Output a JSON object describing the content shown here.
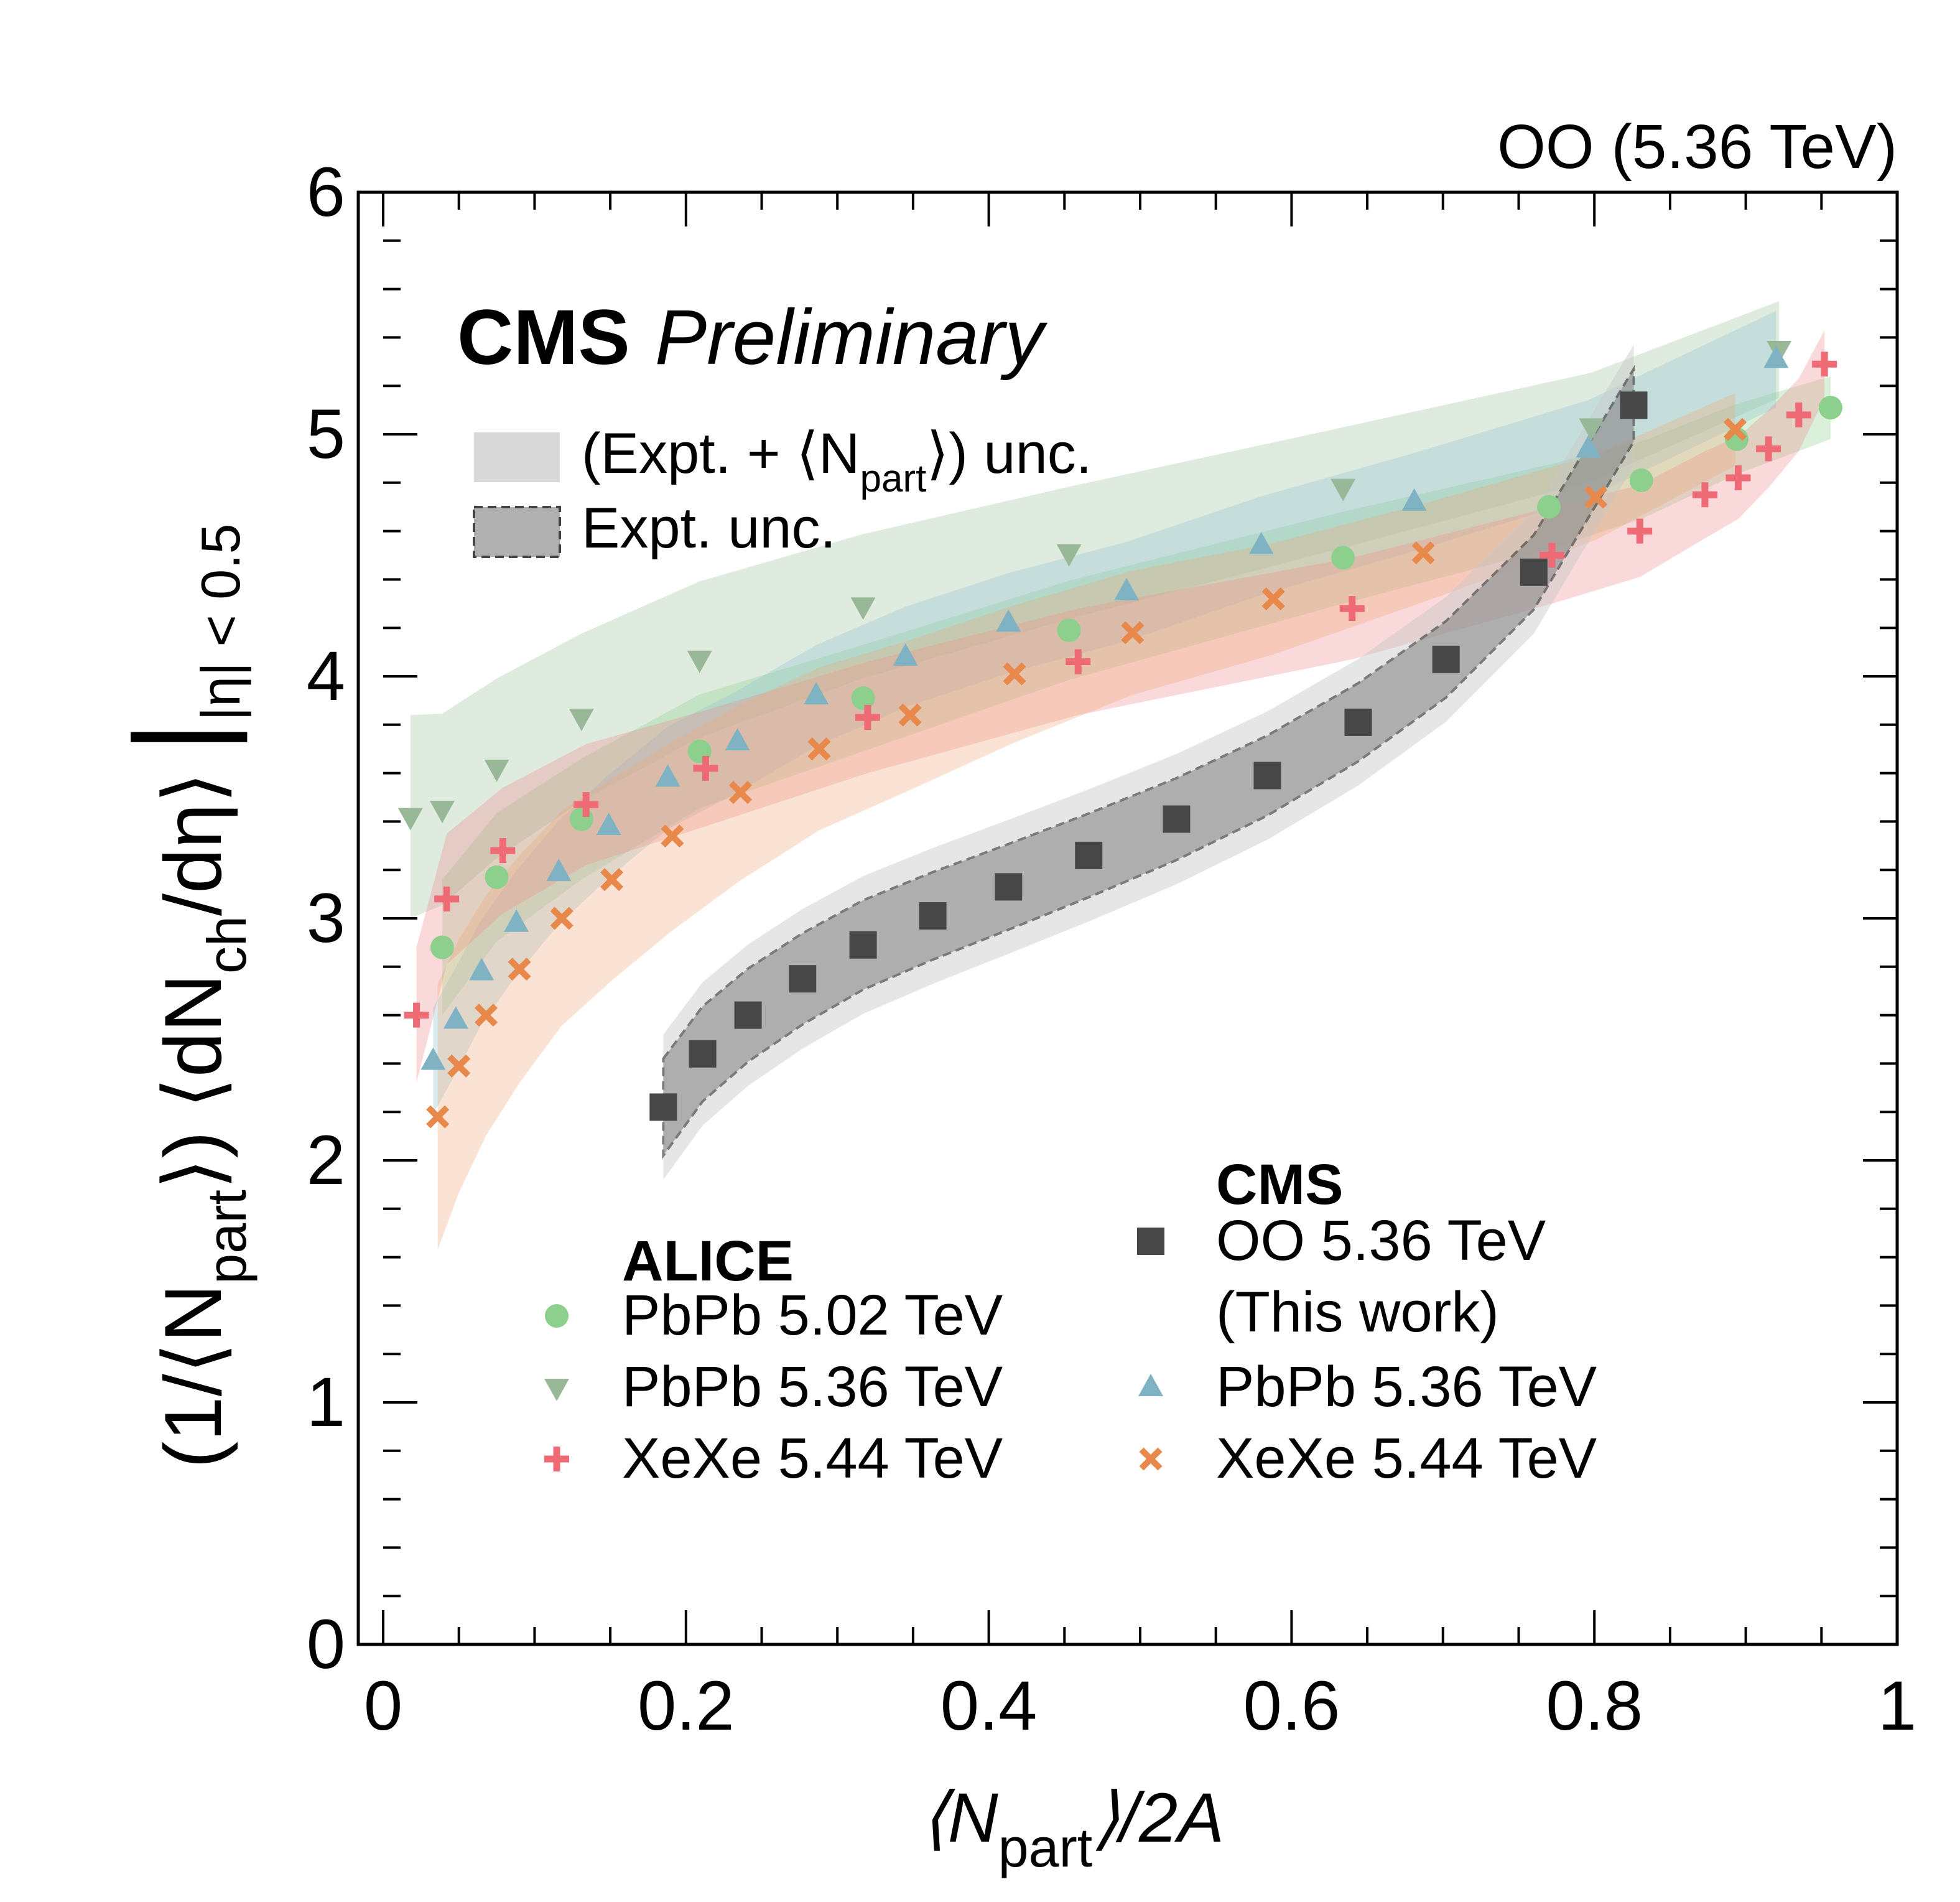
{
  "chart_data": {
    "type": "scatter",
    "title": "OO (5.36 TeV)",
    "experiment": "CMS",
    "status": "Preliminary",
    "xlabel": {
      "main": "⟨N",
      "sub": "part",
      "tail": "⟩/2A"
    },
    "ylabel": {
      "p1": "(1/⟨N",
      "p1sub": "part",
      "p2": "⟩) ⟨dN",
      "p2sub": "ch",
      "p3": "/dη⟩",
      "range": "|η| < 0.5"
    },
    "xlim": [
      0,
      1
    ],
    "ylim": [
      0,
      6
    ],
    "xticks": [
      "0",
      "0.2",
      "0.4",
      "0.6",
      "0.8",
      "1"
    ],
    "yticks": [
      "0",
      "1",
      "2",
      "3",
      "4",
      "5",
      "6"
    ],
    "band_legend": {
      "total": "(Expt. +  ⟨N",
      "total_sub": "part",
      "total_tail": "⟩) unc.",
      "expt": "Expt. unc."
    },
    "legend_groups": {
      "alice": "ALICE",
      "cms": "CMS"
    },
    "series": [
      {
        "name": "OO 5.36 TeV",
        "name2": "(This work)",
        "group": "cms",
        "marker": "square",
        "color": "#474747",
        "band": "#b0b0b0",
        "x": [
          0.185,
          0.211,
          0.241,
          0.277,
          0.317,
          0.363,
          0.413,
          0.466,
          0.524,
          0.584,
          0.644,
          0.702,
          0.76,
          0.826
        ],
        "y": [
          2.22,
          2.44,
          2.6,
          2.75,
          2.89,
          3.01,
          3.13,
          3.26,
          3.41,
          3.59,
          3.81,
          4.07,
          4.43,
          5.12
        ],
        "band_unc": [
          0.3,
          0.25
        ],
        "expt_unc": [
          0.2,
          0.15
        ]
      },
      {
        "name": "PbPb 5.02 TeV",
        "group": "alice",
        "marker": "circle",
        "color": "#8dcf8d",
        "band": "#8dcf8d",
        "x": [
          0.039,
          0.075,
          0.131,
          0.209,
          0.317,
          0.453,
          0.634,
          0.77,
          0.831,
          0.894,
          0.956
        ],
        "y": [
          2.88,
          3.17,
          3.41,
          3.69,
          3.91,
          4.19,
          4.49,
          4.7,
          4.81,
          4.98,
          5.11
        ],
        "band_unc": [
          0.28,
          0.13
        ]
      },
      {
        "name": "PbPb 5.36 TeV",
        "group": "alice",
        "marker": "triangle-down",
        "color": "#98b898",
        "band": "#9cc29c",
        "x": [
          0.018,
          0.039,
          0.075,
          0.131,
          0.209,
          0.317,
          0.453,
          0.634,
          0.798,
          0.922
        ],
        "y": [
          3.42,
          3.45,
          3.62,
          3.83,
          4.07,
          4.29,
          4.51,
          4.78,
          5.03,
          5.35
        ],
        "band_unc": [
          0.42,
          0.2
        ]
      },
      {
        "name": "XeXe 5.44 TeV",
        "group": "alice",
        "marker": "plus",
        "color": "#ee6b76",
        "band": "#f08a90",
        "x": [
          0.022,
          0.042,
          0.079,
          0.134,
          0.213,
          0.32,
          0.459,
          0.64,
          0.772,
          0.83,
          0.873,
          0.895,
          0.915,
          0.935,
          0.952
        ],
        "y": [
          2.6,
          3.08,
          3.28,
          3.47,
          3.62,
          3.83,
          4.06,
          4.28,
          4.5,
          4.6,
          4.75,
          4.82,
          4.94,
          5.08,
          5.29
        ],
        "band_unc": [
          0.28,
          0.14
        ]
      },
      {
        "name": "PbPb 5.36 TeV",
        "group": "cms",
        "marker": "triangle-up",
        "color": "#7fb2c2",
        "band": "#90c4d4",
        "x": [
          0.033,
          0.048,
          0.065,
          0.088,
          0.116,
          0.149,
          0.188,
          0.234,
          0.286,
          0.345,
          0.413,
          0.491,
          0.58,
          0.681,
          0.796,
          0.92
        ],
        "y": [
          2.41,
          2.58,
          2.78,
          2.98,
          3.19,
          3.38,
          3.58,
          3.73,
          3.92,
          4.08,
          4.22,
          4.35,
          4.54,
          4.72,
          4.94,
          5.31
        ],
        "band_unc": [
          0.22,
          0.2
        ]
      },
      {
        "name": "XeXe 5.44 TeV",
        "group": "cms",
        "marker": "cross",
        "color": "#e8884a",
        "band": "#f0a878",
        "x": [
          0.036,
          0.05,
          0.068,
          0.09,
          0.118,
          0.151,
          0.191,
          0.236,
          0.288,
          0.348,
          0.417,
          0.495,
          0.588,
          0.687,
          0.801,
          0.893
        ],
        "y": [
          2.18,
          2.39,
          2.6,
          2.79,
          3.0,
          3.16,
          3.34,
          3.52,
          3.7,
          3.84,
          4.01,
          4.18,
          4.32,
          4.51,
          4.74,
          5.02
        ],
        "band_unc": [
          0.55,
          0.15
        ]
      }
    ]
  }
}
